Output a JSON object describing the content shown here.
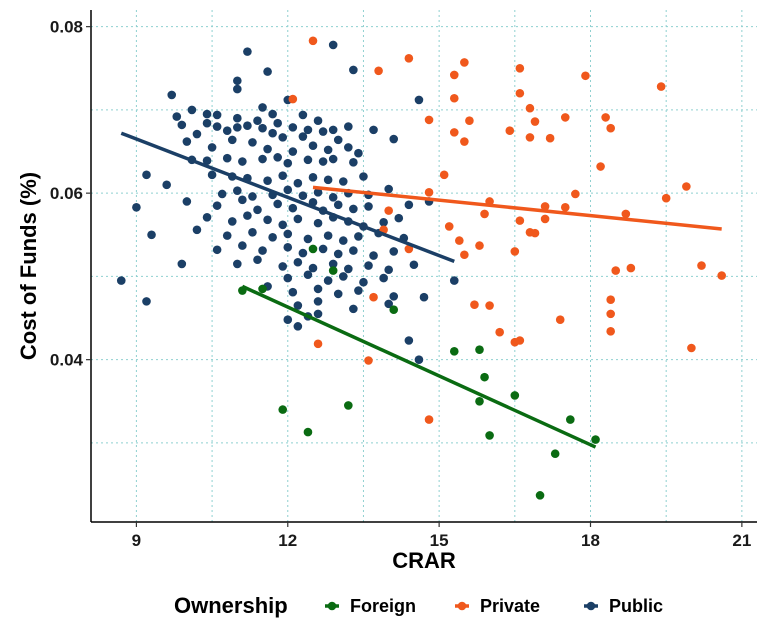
{
  "chart_data": {
    "type": "scatter",
    "xlabel": "CRAR",
    "ylabel": "Cost of Funds (%)",
    "xlim": [
      8.1,
      21.3
    ],
    "ylim": [
      0.0205,
      0.082
    ],
    "x_ticks": [
      9,
      12,
      15,
      18,
      21
    ],
    "y_ticks": [
      0.04,
      0.06,
      0.08
    ],
    "x_tick_labels": [
      "9",
      "12",
      "15",
      "18",
      "21"
    ],
    "y_tick_labels": [
      "0.04",
      "0.06",
      "0.08"
    ],
    "grid": true,
    "legend": {
      "title": "Ownership",
      "position": "bottom",
      "entries": [
        "Foreign",
        "Private",
        "Public"
      ]
    },
    "series": [
      {
        "name": "Foreign",
        "color": "#0a6b12",
        "points": [
          [
            11.1,
            0.0483
          ],
          [
            11.5,
            0.0485
          ],
          [
            11.9,
            0.034
          ],
          [
            12.4,
            0.0313
          ],
          [
            12.5,
            0.0533
          ],
          [
            12.9,
            0.0507
          ],
          [
            13.2,
            0.0345
          ],
          [
            14.1,
            0.046
          ],
          [
            15.3,
            0.041
          ],
          [
            15.8,
            0.0412
          ],
          [
            15.9,
            0.0379
          ],
          [
            15.8,
            0.035
          ],
          [
            16.0,
            0.0309
          ],
          [
            16.5,
            0.0357
          ],
          [
            17.0,
            0.0237
          ],
          [
            17.3,
            0.0287
          ],
          [
            17.6,
            0.0328
          ],
          [
            18.1,
            0.0304
          ]
        ],
        "fit": [
          [
            11.1,
            0.0488
          ],
          [
            18.1,
            0.0295
          ]
        ]
      },
      {
        "name": "Private",
        "color": "#f0581c",
        "points": [
          [
            12.5,
            0.0783
          ],
          [
            13.8,
            0.0747
          ],
          [
            14.4,
            0.0762
          ],
          [
            15.3,
            0.0742
          ],
          [
            15.5,
            0.0757
          ],
          [
            16.6,
            0.075
          ],
          [
            17.9,
            0.0741
          ],
          [
            19.4,
            0.0728
          ],
          [
            16.6,
            0.072
          ],
          [
            16.8,
            0.0702
          ],
          [
            15.3,
            0.0714
          ],
          [
            12.1,
            0.0713
          ],
          [
            15.6,
            0.0687
          ],
          [
            16.9,
            0.0686
          ],
          [
            17.5,
            0.0691
          ],
          [
            18.3,
            0.0691
          ],
          [
            15.3,
            0.0673
          ],
          [
            16.4,
            0.0675
          ],
          [
            16.8,
            0.0667
          ],
          [
            17.2,
            0.0666
          ],
          [
            18.4,
            0.0678
          ],
          [
            15.5,
            0.0662
          ],
          [
            14.8,
            0.0688
          ],
          [
            18.2,
            0.0632
          ],
          [
            15.1,
            0.0622
          ],
          [
            14.8,
            0.0601
          ],
          [
            16.0,
            0.059
          ],
          [
            17.7,
            0.0599
          ],
          [
            19.5,
            0.0594
          ],
          [
            19.9,
            0.0608
          ],
          [
            15.9,
            0.0575
          ],
          [
            16.6,
            0.0567
          ],
          [
            17.1,
            0.0584
          ],
          [
            17.5,
            0.0583
          ],
          [
            18.7,
            0.0575
          ],
          [
            14.0,
            0.0579
          ],
          [
            15.2,
            0.056
          ],
          [
            16.8,
            0.0553
          ],
          [
            16.5,
            0.053
          ],
          [
            15.8,
            0.0537
          ],
          [
            15.4,
            0.0543
          ],
          [
            15.5,
            0.0526
          ],
          [
            13.9,
            0.0556
          ],
          [
            14.4,
            0.0533
          ],
          [
            17.1,
            0.0569
          ],
          [
            18.5,
            0.0507
          ],
          [
            18.8,
            0.051
          ],
          [
            20.2,
            0.0513
          ],
          [
            20.6,
            0.0501
          ],
          [
            13.7,
            0.0475
          ],
          [
            15.7,
            0.0466
          ],
          [
            16.0,
            0.0465
          ],
          [
            18.4,
            0.0472
          ],
          [
            18.4,
            0.0455
          ],
          [
            17.4,
            0.0448
          ],
          [
            16.2,
            0.0433
          ],
          [
            16.6,
            0.0423
          ],
          [
            16.5,
            0.0421
          ],
          [
            18.4,
            0.0434
          ],
          [
            12.6,
            0.0419
          ],
          [
            13.6,
            0.0399
          ],
          [
            14.8,
            0.0328
          ],
          [
            20.0,
            0.0414
          ],
          [
            16.9,
            0.0552
          ]
        ],
        "fit": [
          [
            12.5,
            0.0607
          ],
          [
            20.6,
            0.0557
          ]
        ]
      },
      {
        "name": "Public",
        "color": "#1b3f66",
        "points": [
          [
            11.2,
            0.077
          ],
          [
            12.9,
            0.0778
          ],
          [
            11.0,
            0.0735
          ],
          [
            11.6,
            0.0746
          ],
          [
            13.3,
            0.0748
          ],
          [
            9.7,
            0.0718
          ],
          [
            11.0,
            0.0725
          ],
          [
            10.1,
            0.07
          ],
          [
            11.5,
            0.0703
          ],
          [
            12.0,
            0.0712
          ],
          [
            9.8,
            0.0692
          ],
          [
            10.4,
            0.0695
          ],
          [
            10.6,
            0.0694
          ],
          [
            11.0,
            0.069
          ],
          [
            11.4,
            0.0687
          ],
          [
            11.7,
            0.0695
          ],
          [
            12.3,
            0.0694
          ],
          [
            12.6,
            0.0687
          ],
          [
            13.2,
            0.068
          ],
          [
            14.6,
            0.0712
          ],
          [
            9.9,
            0.0682
          ],
          [
            10.2,
            0.0671
          ],
          [
            10.4,
            0.0684
          ],
          [
            10.6,
            0.068
          ],
          [
            10.8,
            0.0675
          ],
          [
            11.0,
            0.0679
          ],
          [
            11.2,
            0.0681
          ],
          [
            11.5,
            0.0678
          ],
          [
            11.7,
            0.0672
          ],
          [
            11.8,
            0.0684
          ],
          [
            12.1,
            0.0679
          ],
          [
            12.4,
            0.0676
          ],
          [
            12.7,
            0.0674
          ],
          [
            12.9,
            0.0676
          ],
          [
            13.7,
            0.0676
          ],
          [
            14.1,
            0.0665
          ],
          [
            10.0,
            0.0662
          ],
          [
            10.5,
            0.0655
          ],
          [
            10.9,
            0.0664
          ],
          [
            11.3,
            0.0661
          ],
          [
            11.6,
            0.0653
          ],
          [
            11.9,
            0.0667
          ],
          [
            12.1,
            0.065
          ],
          [
            12.3,
            0.0668
          ],
          [
            12.5,
            0.0657
          ],
          [
            12.8,
            0.0652
          ],
          [
            13.0,
            0.0664
          ],
          [
            13.2,
            0.0655
          ],
          [
            13.4,
            0.0648
          ],
          [
            10.1,
            0.064
          ],
          [
            10.4,
            0.0639
          ],
          [
            10.8,
            0.0642
          ],
          [
            11.1,
            0.0638
          ],
          [
            11.5,
            0.0641
          ],
          [
            11.8,
            0.0643
          ],
          [
            12.0,
            0.0636
          ],
          [
            12.4,
            0.064
          ],
          [
            12.7,
            0.0638
          ],
          [
            12.9,
            0.0641
          ],
          [
            13.3,
            0.0637
          ],
          [
            9.2,
            0.0622
          ],
          [
            9.6,
            0.061
          ],
          [
            10.5,
            0.0622
          ],
          [
            10.9,
            0.062
          ],
          [
            11.2,
            0.0618
          ],
          [
            11.6,
            0.0615
          ],
          [
            11.9,
            0.0621
          ],
          [
            12.2,
            0.0612
          ],
          [
            12.5,
            0.0619
          ],
          [
            12.8,
            0.0616
          ],
          [
            13.1,
            0.0614
          ],
          [
            13.5,
            0.062
          ],
          [
            10.7,
            0.0599
          ],
          [
            11.0,
            0.0603
          ],
          [
            11.3,
            0.0596
          ],
          [
            11.7,
            0.0598
          ],
          [
            12.0,
            0.0604
          ],
          [
            12.3,
            0.0597
          ],
          [
            12.6,
            0.0601
          ],
          [
            12.9,
            0.0595
          ],
          [
            13.2,
            0.06
          ],
          [
            13.6,
            0.0598
          ],
          [
            14.0,
            0.0605
          ],
          [
            9.0,
            0.0583
          ],
          [
            10.0,
            0.059
          ],
          [
            10.6,
            0.0585
          ],
          [
            11.1,
            0.0592
          ],
          [
            11.4,
            0.058
          ],
          [
            11.8,
            0.0587
          ],
          [
            12.1,
            0.0582
          ],
          [
            12.5,
            0.0589
          ],
          [
            12.7,
            0.0579
          ],
          [
            13.0,
            0.0586
          ],
          [
            13.3,
            0.0581
          ],
          [
            13.6,
            0.0584
          ],
          [
            14.4,
            0.0586
          ],
          [
            14.8,
            0.059
          ],
          [
            10.4,
            0.0571
          ],
          [
            10.9,
            0.0566
          ],
          [
            11.2,
            0.0573
          ],
          [
            11.6,
            0.0568
          ],
          [
            11.9,
            0.0562
          ],
          [
            12.2,
            0.0569
          ],
          [
            12.6,
            0.0564
          ],
          [
            12.9,
            0.0571
          ],
          [
            13.2,
            0.0566
          ],
          [
            13.5,
            0.056
          ],
          [
            13.9,
            0.0565
          ],
          [
            14.2,
            0.057
          ],
          [
            9.3,
            0.055
          ],
          [
            10.2,
            0.0556
          ],
          [
            10.8,
            0.0549
          ],
          [
            11.3,
            0.0553
          ],
          [
            11.7,
            0.0547
          ],
          [
            12.0,
            0.0551
          ],
          [
            12.4,
            0.0545
          ],
          [
            12.8,
            0.0549
          ],
          [
            13.1,
            0.0543
          ],
          [
            13.4,
            0.0548
          ],
          [
            13.8,
            0.0552
          ],
          [
            14.3,
            0.0546
          ],
          [
            10.6,
            0.0532
          ],
          [
            11.1,
            0.0537
          ],
          [
            11.5,
            0.0531
          ],
          [
            12.0,
            0.0535
          ],
          [
            12.3,
            0.0528
          ],
          [
            12.7,
            0.0533
          ],
          [
            13.0,
            0.0527
          ],
          [
            13.3,
            0.0531
          ],
          [
            13.7,
            0.0525
          ],
          [
            14.1,
            0.053
          ],
          [
            9.9,
            0.0515
          ],
          [
            11.0,
            0.0515
          ],
          [
            11.4,
            0.052
          ],
          [
            11.9,
            0.0512
          ],
          [
            12.2,
            0.0517
          ],
          [
            12.5,
            0.051
          ],
          [
            12.9,
            0.0515
          ],
          [
            13.2,
            0.0509
          ],
          [
            13.6,
            0.0513
          ],
          [
            14.0,
            0.0508
          ],
          [
            14.5,
            0.0514
          ],
          [
            12.0,
            0.0498
          ],
          [
            12.4,
            0.0502
          ],
          [
            12.8,
            0.0495
          ],
          [
            13.1,
            0.05
          ],
          [
            13.5,
            0.0493
          ],
          [
            13.9,
            0.0498
          ],
          [
            15.3,
            0.0495
          ],
          [
            8.7,
            0.0495
          ],
          [
            11.6,
            0.0488
          ],
          [
            12.1,
            0.0481
          ],
          [
            12.6,
            0.0485
          ],
          [
            13.0,
            0.0479
          ],
          [
            13.4,
            0.0483
          ],
          [
            14.1,
            0.0476
          ],
          [
            14.7,
            0.0475
          ],
          [
            9.2,
            0.047
          ],
          [
            12.2,
            0.0465
          ],
          [
            12.6,
            0.047
          ],
          [
            13.3,
            0.0461
          ],
          [
            14.0,
            0.0467
          ],
          [
            12.0,
            0.0448
          ],
          [
            12.4,
            0.0452
          ],
          [
            12.6,
            0.0455
          ],
          [
            12.2,
            0.044
          ],
          [
            14.4,
            0.0423
          ],
          [
            14.6,
            0.04
          ]
        ],
        "fit": [
          [
            8.7,
            0.0672
          ],
          [
            15.3,
            0.0518
          ]
        ]
      }
    ]
  }
}
